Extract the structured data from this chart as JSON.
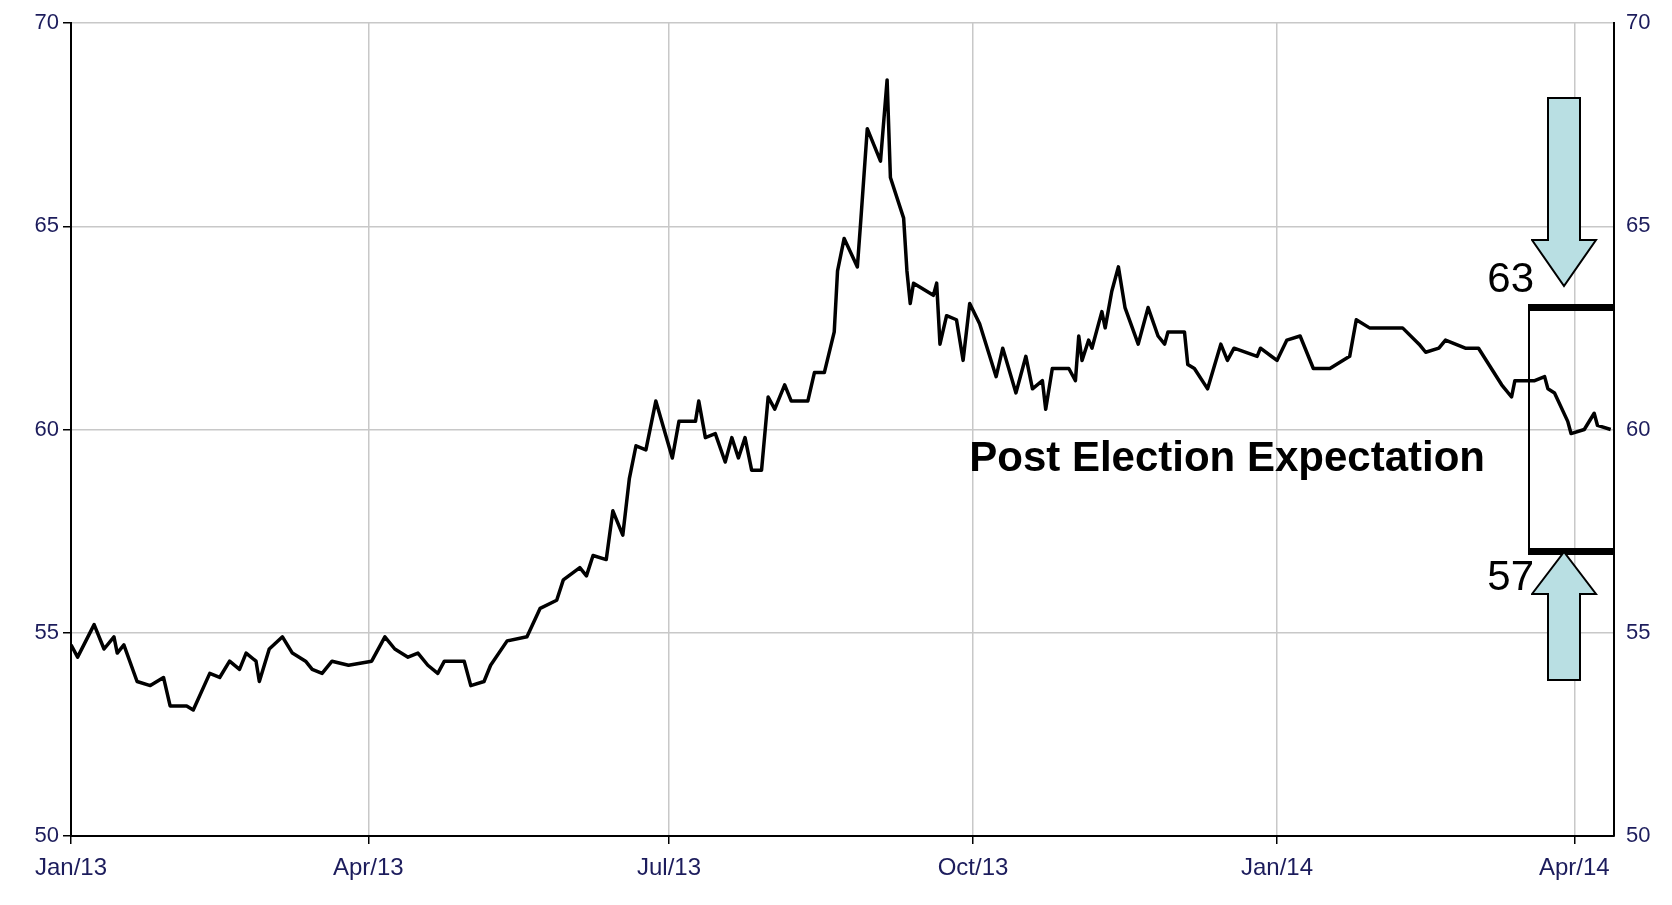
{
  "chart_data": {
    "type": "line",
    "x": [
      "2013-01-01",
      "2013-01-03",
      "2013-01-08",
      "2013-01-11",
      "2013-01-14",
      "2013-01-15",
      "2013-01-17",
      "2013-01-21",
      "2013-01-25",
      "2013-01-29",
      "2013-01-31",
      "2013-02-05",
      "2013-02-07",
      "2013-02-12",
      "2013-02-15",
      "2013-02-18",
      "2013-02-21",
      "2013-02-23",
      "2013-02-26",
      "2013-02-27",
      "2013-03-02",
      "2013-03-06",
      "2013-03-09",
      "2013-03-13",
      "2013-03-15",
      "2013-03-18",
      "2013-03-21",
      "2013-03-26",
      "2013-04-02",
      "2013-04-06",
      "2013-04-09",
      "2013-04-13",
      "2013-04-16",
      "2013-04-19",
      "2013-04-22",
      "2013-04-24",
      "2013-04-30",
      "2013-05-02",
      "2013-05-06",
      "2013-05-08",
      "2013-05-13",
      "2013-05-19",
      "2013-05-23",
      "2013-05-28",
      "2013-05-30",
      "2013-06-04",
      "2013-06-06",
      "2013-06-08",
      "2013-06-12",
      "2013-06-14",
      "2013-06-17",
      "2013-06-19",
      "2013-06-21",
      "2013-06-24",
      "2013-06-27",
      "2013-07-02",
      "2013-07-04",
      "2013-07-09",
      "2013-07-10",
      "2013-07-12",
      "2013-07-15",
      "2013-07-18",
      "2013-07-20",
      "2013-07-22",
      "2013-07-24",
      "2013-07-26",
      "2013-07-29",
      "2013-07-31",
      "2013-08-02",
      "2013-08-05",
      "2013-08-07",
      "2013-08-12",
      "2013-08-14",
      "2013-08-17",
      "2013-08-20",
      "2013-08-21",
      "2013-08-23",
      "2013-08-27",
      "2013-08-28",
      "2013-08-30",
      "2013-09-03",
      "2013-09-05",
      "2013-09-06",
      "2013-09-10",
      "2013-09-11",
      "2013-09-12",
      "2013-09-13",
      "2013-09-19",
      "2013-09-20",
      "2013-09-21",
      "2013-09-23",
      "2013-09-26",
      "2013-09-28",
      "2013-09-30",
      "2013-10-03",
      "2013-10-08",
      "2013-10-10",
      "2013-10-14",
      "2013-10-17",
      "2013-10-19",
      "2013-10-22",
      "2013-10-23",
      "2013-10-25",
      "2013-10-30",
      "2013-11-01",
      "2013-11-02",
      "2013-11-03",
      "2013-11-05",
      "2013-11-06",
      "2013-11-09",
      "2013-11-10",
      "2013-11-12",
      "2013-11-14",
      "2013-11-16",
      "2013-11-20",
      "2013-11-23",
      "2013-11-26",
      "2013-11-28",
      "2013-11-29",
      "2013-12-04",
      "2013-12-05",
      "2013-12-07",
      "2013-12-11",
      "2013-12-15",
      "2013-12-17",
      "2013-12-19",
      "2013-12-26",
      "2013-12-27",
      "2014-01-01",
      "2014-01-04",
      "2014-01-08",
      "2014-01-12",
      "2014-01-17",
      "2014-01-23",
      "2014-01-25",
      "2014-01-29",
      "2014-02-08",
      "2014-02-13",
      "2014-02-15",
      "2014-02-19",
      "2014-02-21",
      "2014-02-27",
      "2014-03-03",
      "2014-03-10",
      "2014-03-13",
      "2014-03-14",
      "2014-03-20",
      "2014-03-23",
      "2014-03-24",
      "2014-03-26",
      "2014-03-30",
      "2014-03-31",
      "2014-04-04",
      "2014-04-07",
      "2014-04-08",
      "2014-04-12"
    ],
    "series": [
      {
        "color": "#000000",
        "values": [
          54.7,
          54.4,
          55.2,
          54.6,
          54.9,
          54.5,
          54.7,
          53.8,
          53.7,
          53.9,
          53.2,
          53.2,
          53.1,
          54.0,
          53.9,
          54.3,
          54.1,
          54.5,
          54.3,
          53.8,
          54.6,
          54.9,
          54.5,
          54.3,
          54.1,
          54.0,
          54.3,
          54.2,
          54.3,
          54.9,
          54.6,
          54.4,
          54.5,
          54.2,
          54.0,
          54.3,
          54.3,
          53.7,
          53.8,
          54.2,
          54.8,
          54.9,
          55.6,
          55.8,
          56.3,
          56.6,
          56.4,
          56.9,
          56.8,
          58.0,
          57.4,
          58.8,
          59.6,
          59.5,
          60.7,
          59.3,
          60.2,
          60.2,
          60.7,
          59.8,
          59.9,
          59.2,
          59.8,
          59.3,
          59.8,
          59.0,
          59.0,
          60.8,
          60.5,
          61.1,
          60.7,
          60.7,
          61.4,
          61.4,
          62.4,
          63.9,
          64.7,
          64.0,
          65.1,
          67.4,
          66.6,
          68.6,
          66.2,
          65.2,
          63.9,
          63.1,
          63.6,
          63.3,
          63.6,
          62.1,
          62.8,
          62.7,
          61.7,
          63.1,
          62.6,
          61.3,
          62.0,
          60.9,
          61.8,
          61.0,
          61.2,
          60.5,
          61.5,
          61.5,
          61.2,
          62.3,
          61.7,
          62.2,
          62.0,
          62.9,
          62.5,
          63.4,
          64.0,
          63.0,
          62.1,
          63.0,
          62.3,
          62.1,
          62.4,
          62.4,
          61.6,
          61.5,
          61.0,
          62.1,
          61.7,
          62.0,
          61.8,
          62.0,
          61.7,
          62.2,
          62.3,
          61.5,
          61.5,
          61.8,
          62.7,
          62.5,
          62.5,
          62.1,
          61.9,
          62.0,
          62.2,
          62.0,
          62.0,
          61.1,
          60.8,
          61.2,
          61.2,
          61.3,
          61.0,
          60.9,
          60.2,
          59.9,
          60.0,
          60.4,
          60.1,
          60.0
        ]
      }
    ],
    "xlim": [
      "2013-01-01",
      "2014-04-13"
    ],
    "xticks": [
      {
        "value": "2013-01-01",
        "label": "Jan/13"
      },
      {
        "value": "2013-04-01",
        "label": "Apr/13"
      },
      {
        "value": "2013-07-01",
        "label": "Jul/13"
      },
      {
        "value": "2013-10-01",
        "label": "Oct/13"
      },
      {
        "value": "2014-01-01",
        "label": "Jan/14"
      },
      {
        "value": "2014-04-01",
        "label": "Apr/14"
      }
    ],
    "ylim": [
      50,
      70
    ],
    "yticks": [
      50,
      55,
      60,
      65,
      70
    ],
    "y2lim": [
      50,
      70
    ],
    "y2ticks": [
      50,
      55,
      60,
      65,
      70
    ],
    "ref_lines": [
      {
        "axis": "y",
        "value": 63,
        "label": "63",
        "color": "#000000"
      },
      {
        "axis": "y",
        "value": 57,
        "label": "57",
        "color": "#000000"
      }
    ],
    "annotations": [
      "Post Election Expectation"
    ],
    "grid": true,
    "line_style": "solid"
  }
}
